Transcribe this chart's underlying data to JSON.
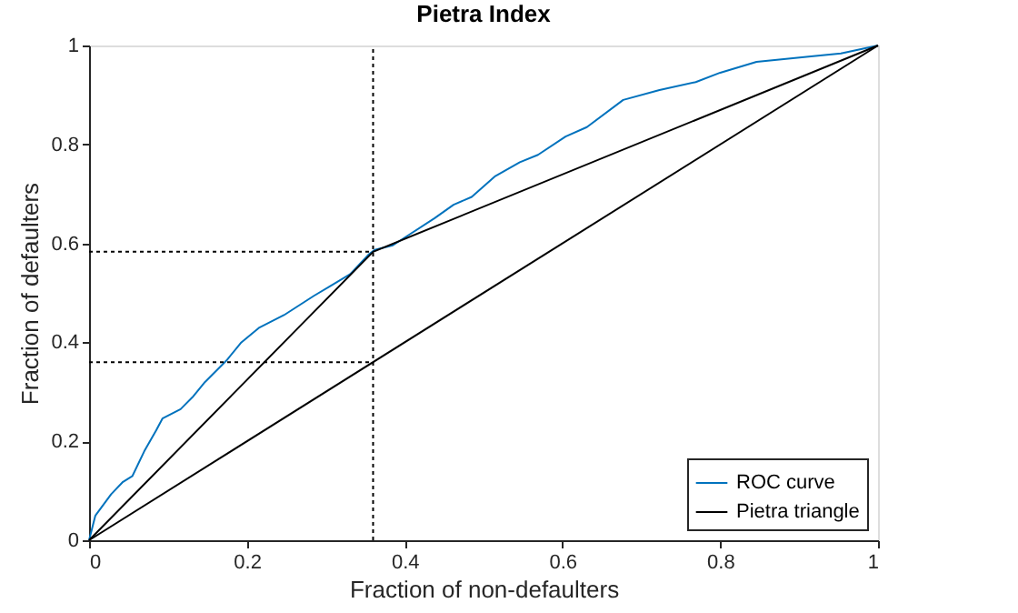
{
  "chart_data": {
    "type": "line",
    "title": "Pietra Index",
    "xlabel": "Fraction of non-defaulters",
    "ylabel": "Fraction of defaulters",
    "xlim": [
      0,
      1
    ],
    "ylim": [
      0,
      1
    ],
    "xticks": [
      0,
      0.2,
      0.4,
      0.6,
      0.8,
      1
    ],
    "yticks": [
      0,
      0.2,
      0.4,
      0.6,
      0.8,
      1
    ],
    "grid": false,
    "legend": "bottom right",
    "line_style": "solid",
    "marker": "none",
    "series": [
      {
        "name": "ROC curve",
        "color": "#0072bd",
        "x": [
          0,
          0.008,
          0.028,
          0.043,
          0.055,
          0.07,
          0.085,
          0.093,
          0.116,
          0.131,
          0.147,
          0.174,
          0.193,
          0.216,
          0.247,
          0.285,
          0.308,
          0.331,
          0.354,
          0.362,
          0.385,
          0.408,
          0.438,
          0.462,
          0.485,
          0.515,
          0.546,
          0.569,
          0.604,
          0.631,
          0.677,
          0.723,
          0.769,
          0.8,
          0.846,
          0.915,
          0.953,
          1
        ],
        "values": [
          0,
          0.05,
          0.093,
          0.118,
          0.13,
          0.18,
          0.222,
          0.246,
          0.265,
          0.289,
          0.32,
          0.363,
          0.4,
          0.43,
          0.455,
          0.494,
          0.516,
          0.538,
          0.577,
          0.587,
          0.596,
          0.62,
          0.651,
          0.678,
          0.694,
          0.736,
          0.764,
          0.779,
          0.816,
          0.835,
          0.89,
          0.91,
          0.926,
          0.945,
          0.967,
          0.978,
          0.984,
          1
        ]
      },
      {
        "name": "Pietra triangle",
        "color": "#000000",
        "x": [
          0,
          0.36,
          1
        ],
        "values": [
          0,
          0.583,
          1
        ]
      },
      {
        "color": "#000000",
        "x": [
          0,
          1
        ],
        "values": [
          0,
          1
        ]
      }
    ],
    "ref_lines": [
      {
        "axis": "x",
        "value": 0.36,
        "line_style": "dotted",
        "color": "#000000"
      },
      {
        "axis": "y",
        "value": 0.583,
        "line_style": "dotted",
        "color": "#000000"
      },
      {
        "axis": "y",
        "value": 0.36,
        "line_style": "dotted",
        "color": "#000000"
      }
    ]
  }
}
